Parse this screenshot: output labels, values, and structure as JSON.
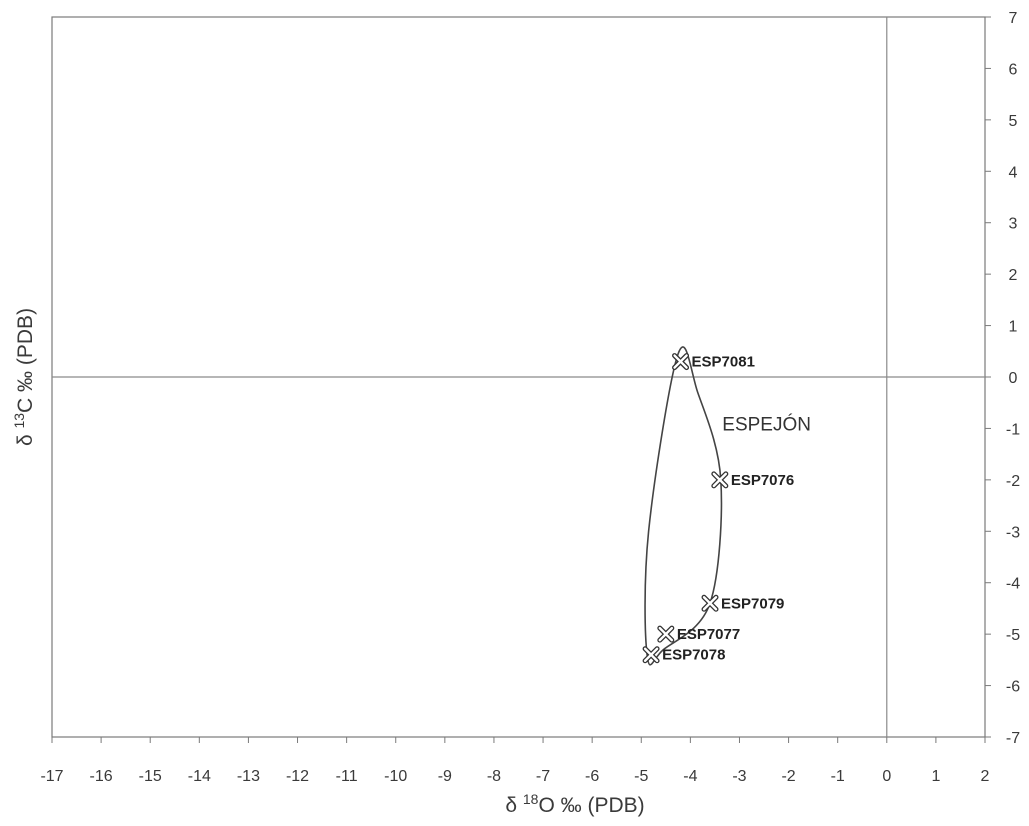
{
  "chart_data": {
    "type": "scatter",
    "title": "",
    "xlabel_parts": {
      "prefix": "δ ",
      "sup": "18",
      "rest": "O ‰ (PDB)"
    },
    "ylabel_parts": {
      "prefix": "δ ",
      "sup": "13",
      "rest": "C ‰ (PDB)"
    },
    "xlim": [
      -17,
      2
    ],
    "ylim": [
      -7,
      7
    ],
    "x_ticks": [
      -17,
      -16,
      -15,
      -14,
      -13,
      -12,
      -11,
      -10,
      -9,
      -8,
      -7,
      -6,
      -5,
      -4,
      -3,
      -2,
      -1,
      0,
      1,
      2
    ],
    "y_ticks": [
      -7,
      -6,
      -5,
      -4,
      -3,
      -2,
      -1,
      0,
      1,
      2,
      3,
      4,
      5,
      6,
      7
    ],
    "y_axis_position": "right",
    "reference_lines": {
      "x": 0,
      "y": 0
    },
    "grid": false,
    "marker": "cross",
    "points": [
      {
        "label": "ESP7081",
        "x": -4.2,
        "y": 0.3
      },
      {
        "label": "ESP7076",
        "x": -3.4,
        "y": -2.0
      },
      {
        "label": "ESP7079",
        "x": -3.6,
        "y": -4.4
      },
      {
        "label": "ESP7077",
        "x": -4.5,
        "y": -5.0
      },
      {
        "label": "ESP7078",
        "x": -4.8,
        "y": -5.4
      }
    ],
    "group": {
      "label": "ESPEJÓN",
      "label_anchor": {
        "x": -3.35,
        "y": -0.9
      },
      "envelope": [
        {
          "x": -4.25,
          "y": 0.45
        },
        {
          "x": -3.85,
          "y": -0.3
        },
        {
          "x": -3.38,
          "y": -2.0
        },
        {
          "x": -3.6,
          "y": -4.4
        },
        {
          "x": -4.55,
          "y": -5.3
        },
        {
          "x": -4.88,
          "y": -5.42
        },
        {
          "x": -4.85,
          "y": -3.0
        },
        {
          "x": -4.25,
          "y": 0.45
        }
      ]
    }
  }
}
